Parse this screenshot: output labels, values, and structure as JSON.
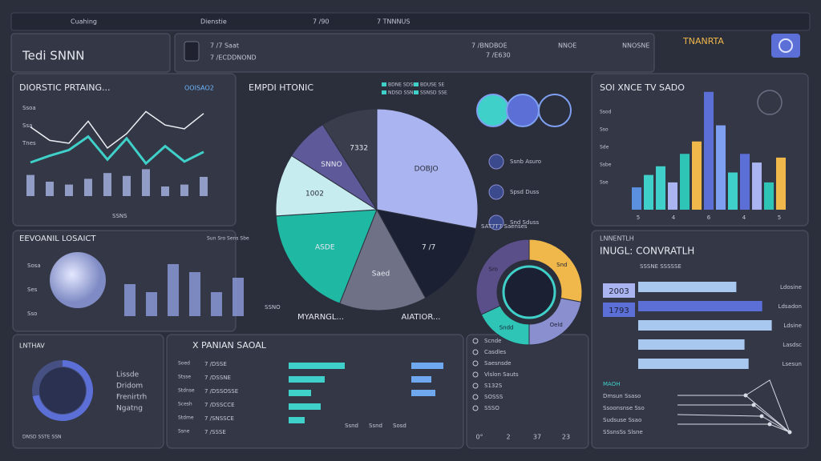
{
  "topbar": {
    "items": [
      "Cuahing",
      "Dienstie",
      "7 /90",
      "7 TNNNUS"
    ]
  },
  "header": {
    "title": "Tedi SNNN",
    "info": [
      "7 /7 Saat",
      "7 /ECDDNOND",
      "7 /BNDBOE",
      "7 /E630",
      "NNOE",
      "NNOSNE"
    ],
    "brand": "TNANRTA"
  },
  "trend": {
    "title": "DIORSTIC PRTAING...",
    "badge": "OOISAO2",
    "ylabels": [
      "Ssoa",
      "Ssa",
      "Tnes"
    ],
    "footer": "SSNS",
    "bars": [
      22,
      15,
      12,
      18,
      24,
      21,
      28,
      10,
      12,
      20
    ],
    "teal": [
      35,
      42,
      48,
      62,
      38,
      60,
      34,
      52,
      36,
      46
    ],
    "white": [
      72,
      58,
      55,
      78,
      50,
      65,
      88,
      74,
      70,
      86
    ]
  },
  "pie": {
    "title": "EMPDI HTONIC",
    "legend": [
      "BDNE SDSE",
      "BDUSE SE",
      "NDSD SSNE",
      "SSNSD SSE"
    ],
    "values": [
      28,
      14,
      14,
      18,
      10,
      7,
      9
    ],
    "labels": [
      "DOBJO",
      "7 /7",
      "Saed",
      "ASDE",
      "1002",
      "SNNO",
      "7332"
    ],
    "colors": [
      "#aab4f0",
      "#1c2033",
      "#6f7286",
      "#1fb8a2",
      "#c7ecef",
      "#5e5a9a",
      "#3a3d4c"
    ],
    "captions": [
      "MYARNGL...",
      "AIATIOR..."
    ],
    "circles": [
      "Ssnb Asuro",
      "Spsd Duss",
      "Snd Sduss"
    ]
  },
  "ring": {
    "title": "SAT7T7 Saenses",
    "values": [
      28,
      22,
      18,
      32
    ],
    "colors": [
      "#f0b84a",
      "#8a8fd0",
      "#2ec4b6",
      "#5b4f8a"
    ],
    "labels": [
      "Snd",
      "Oeld",
      "Sndd",
      "Sro"
    ]
  },
  "bars3": {
    "title": "SOI XNCE TV SADO",
    "values": [
      18,
      28,
      35,
      22,
      45,
      55,
      95,
      68,
      30,
      45,
      38,
      22,
      42
    ],
    "colors": [
      "#5b8fe0",
      "#3fd0c9",
      "#3fd0c9",
      "#aab4f0",
      "#2ec4b6",
      "#f0b84a",
      "#5b6fd6",
      "#7fa0f0",
      "#3fd0c9",
      "#5b6fd6",
      "#aab4f0",
      "#2ec4b6",
      "#f0b84a"
    ],
    "ticks": [
      "5",
      "4",
      "6",
      "4",
      "5"
    ],
    "ylabels": [
      "Ssod",
      "Sso",
      "Sde",
      "Ssbe",
      "Sse"
    ]
  },
  "eev": {
    "title": "EEVOANIL LOSAICT",
    "legend": "Sun Sro Sens Sbe",
    "ylabels": [
      "Sosa",
      "Ses",
      "Sso"
    ],
    "bars": [
      40,
      30,
      65,
      55,
      30,
      48
    ],
    "caption": "SSNO"
  },
  "hbar": {
    "heading": "LNNENTLH",
    "title": "INUGL: CONVRATLH",
    "top": "SSSNE SSSSSE",
    "labels": [
      "Ldosine",
      "Ldsadon",
      "Ldsine",
      "Lasdsc",
      "Lsesun"
    ],
    "values": [
      72,
      91,
      98,
      78,
      81
    ],
    "stats": [
      "2003",
      "1793"
    ],
    "net": [
      "MAOH",
      "Dmsun Ssaso",
      "Ssoonsnse Sso",
      "Sudsuse Ssao",
      "SSsnsSs Slsne"
    ]
  },
  "lnthav": {
    "title": "LNTHAV",
    "value": 72,
    "labels": [
      "Lissde",
      "Dridom",
      "Frenirtrh",
      "Ngatng"
    ],
    "caption": "DNSD SSTE SSN"
  },
  "table": {
    "title": "X PANIAN SAOAL",
    "labels": [
      "Soed",
      "Stsse",
      "Stdnse",
      "Scesh",
      "Stdme",
      "Ssne"
    ],
    "codes": [
      "7 /DSSE",
      "7 /DSSNE",
      "7 /DSSOSSE",
      "7 /DSSCCE",
      "7 /SNSSCE",
      "7 /SSSE"
    ],
    "bars1": [
      70,
      45,
      28,
      40,
      20
    ],
    "bars2": [
      40,
      25,
      30
    ],
    "footer": [
      "Ssnd",
      "Ssnd",
      "Sosd"
    ]
  },
  "list": {
    "items": [
      "Scnde",
      "Casdles",
      "Saesnsde",
      "Vislon Sauts",
      "S132S",
      "SOSSS",
      "SSSO"
    ],
    "axis": [
      "0°",
      "2",
      "37",
      "23"
    ]
  }
}
